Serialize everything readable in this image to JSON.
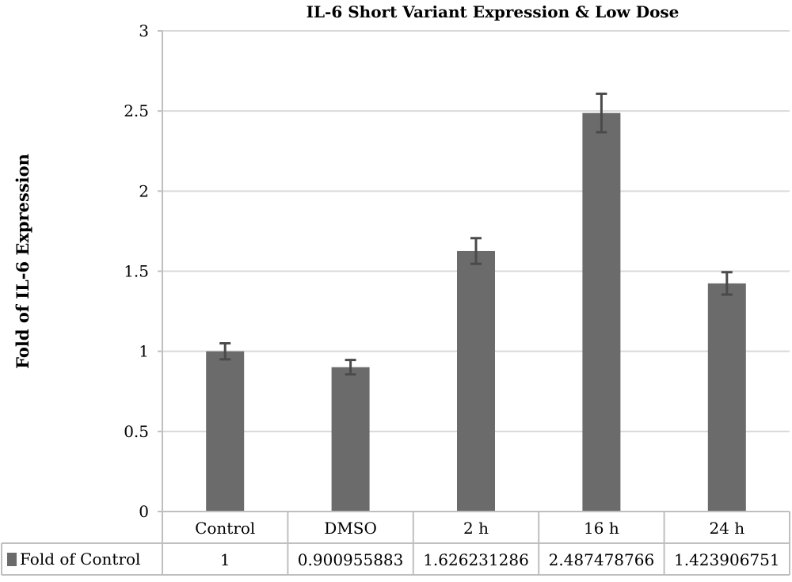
{
  "chart_data": {
    "type": "bar",
    "title": "IL-6 Short Variant Expression & Low Dose",
    "xlabel": "",
    "ylabel": "Fold of IL-6 Expression",
    "categories": [
      "Control",
      "DMSO",
      "2 h",
      "16 h",
      "24 h"
    ],
    "series": [
      {
        "name": "Fold of Control",
        "values": [
          1,
          0.900955883,
          1.626231286,
          2.487478766,
          1.423906751
        ],
        "value_labels": [
          "1",
          "0.900955883",
          "1.626231286",
          "2.487478766",
          "1.423906751"
        ],
        "error": [
          0.05,
          0.045,
          0.08,
          0.12,
          0.07
        ],
        "color": "#6b6b6b"
      }
    ],
    "ylim": [
      0,
      3
    ],
    "yticks": [
      "0",
      "0.5",
      "1",
      "1.5",
      "2",
      "2.5",
      "3"
    ],
    "ytick_values": [
      0,
      0.5,
      1,
      1.5,
      2,
      2.5,
      3
    ],
    "grid": true,
    "legend": "data-table",
    "colors": {
      "bar": "#6b6b6b",
      "error": "#4a4a4a",
      "grid": "#d9d9d9",
      "table_border": "#bfbfbf"
    }
  }
}
